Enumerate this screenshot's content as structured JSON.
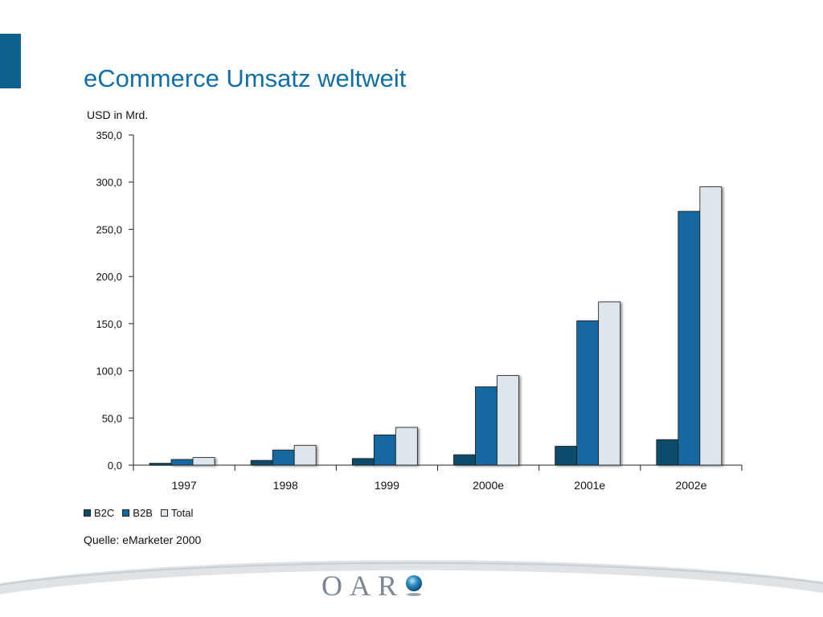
{
  "slide": {
    "title": "eCommerce Umsatz weltweit",
    "source": "Quelle: eMarketer 2000",
    "logo_text": "OAR",
    "accent_color": "#0f5f8f",
    "title_color": "#0f6fa6"
  },
  "chart_data": {
    "type": "bar",
    "unit_label": "USD in Mrd.",
    "categories": [
      "1997",
      "1998",
      "1999",
      "2000e",
      "2001e",
      "2002e"
    ],
    "series": [
      {
        "name": "B2C",
        "values": [
          2.0,
          5.0,
          7.0,
          11.0,
          20.0,
          27.0
        ],
        "color": "#0d4c6b"
      },
      {
        "name": "B2B",
        "values": [
          6.0,
          16.0,
          32.0,
          83.0,
          153.0,
          269.0
        ],
        "color": "#1468a0"
      },
      {
        "name": "Total",
        "values": [
          8.0,
          21.0,
          40.0,
          95.0,
          173.0,
          295.0
        ],
        "color": "#dde6ec"
      }
    ],
    "ylim": [
      0,
      350
    ],
    "yticks": [
      0,
      50,
      100,
      150,
      200,
      250,
      300,
      350
    ],
    "ytick_labels": [
      "0,0",
      "50,0",
      "100,0",
      "150,0",
      "200,0",
      "250,0",
      "300,0",
      "350,0"
    ],
    "grid": false,
    "legend_position": "bottom-left"
  }
}
